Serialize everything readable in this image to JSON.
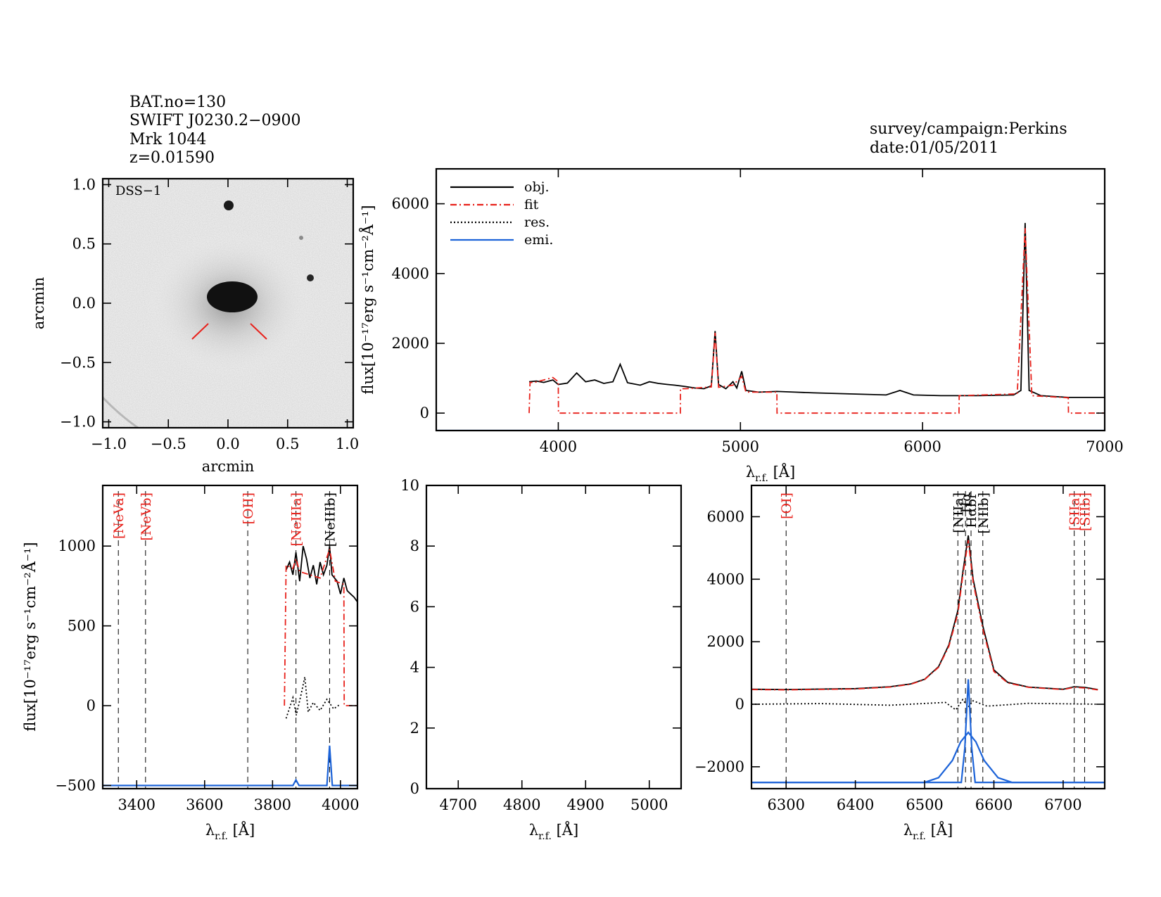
{
  "header": {
    "lines": [
      "BAT.no=130",
      "SWIFT J0230.2−0900",
      "Mrk 1044",
      "z=0.01590"
    ],
    "survey": "survey/campaign:Perkins",
    "date": "date:01/05/2011"
  },
  "colors": {
    "obj": "#000000",
    "fit": "#e8211b",
    "res": "#000000",
    "emi": "#1c63d8"
  },
  "image_panel": {
    "label": "DSS−1",
    "xlabel": "arcmin",
    "ylabel": "arcmin",
    "xticks": [
      "−1.0",
      "−0.5",
      "0.0",
      "0.5",
      "1.0"
    ],
    "yticks": [
      "−1.0",
      "−0.5",
      "0.0",
      "0.5",
      "1.0"
    ]
  },
  "legend": [
    {
      "key": "obj",
      "label": "obj.",
      "style": "solid"
    },
    {
      "key": "fit",
      "label": "fit",
      "style": "dashdot"
    },
    {
      "key": "res",
      "label": "res.",
      "style": "dotted"
    },
    {
      "key": "emi",
      "label": "emi.",
      "style": "solid"
    }
  ],
  "chart_data": [
    {
      "id": "full",
      "type": "line",
      "xlabel": "λr.f. [Å]",
      "xlabel_main": "λ",
      "xlabel_sub": "r.f.",
      "xlabel_rest": " [Å]",
      "ylabel": "flux[10⁻¹⁷erg s⁻¹cm⁻²Å⁻¹]",
      "xlim": [
        3330,
        7000
      ],
      "ylim": [
        -500,
        7000
      ],
      "xticks": [
        4000,
        5000,
        6000,
        7000
      ],
      "yticks": [
        0,
        2000,
        4000,
        6000
      ],
      "series": [
        {
          "name": "obj.",
          "key": "obj",
          "x": [
            3840,
            3880,
            3920,
            3970,
            4000,
            4050,
            4101,
            4150,
            4200,
            4250,
            4300,
            4340,
            4380,
            4450,
            4500,
            4550,
            4600,
            4640,
            4700,
            4750,
            4800,
            4840,
            4861,
            4880,
            4920,
            4959,
            4980,
            5007,
            5030,
            5100,
            5200,
            5300,
            5400,
            5600,
            5800,
            5876,
            5950,
            6100,
            6300,
            6500,
            6540,
            6563,
            6585,
            6650,
            6800,
            7000
          ],
          "y": [
            900,
            920,
            880,
            950,
            820,
            860,
            1150,
            900,
            950,
            850,
            900,
            1400,
            870,
            800,
            900,
            850,
            820,
            800,
            760,
            720,
            700,
            780,
            2350,
            820,
            700,
            900,
            720,
            1200,
            650,
            600,
            620,
            600,
            580,
            550,
            520,
            650,
            520,
            500,
            500,
            520,
            650,
            5450,
            650,
            500,
            450,
            450
          ]
        },
        {
          "name": "fit",
          "key": "fit",
          "x": [
            3840,
            3845,
            3870,
            3970,
            4000,
            4001,
            4670,
            4671,
            4700,
            4840,
            4861,
            4880,
            4959,
            5007,
            5030,
            5200,
            5201,
            6200,
            6201,
            6520,
            6563,
            6600,
            6800,
            6801,
            7000
          ],
          "y": [
            0,
            880,
            880,
            1020,
            900,
            0,
            0,
            700,
            700,
            750,
            2300,
            740,
            800,
            1050,
            600,
            600,
            0,
            0,
            500,
            550,
            5300,
            500,
            440,
            0,
            0
          ]
        },
        {
          "name": "emi.",
          "key": "emi",
          "x": [
            3330,
            7000
          ],
          "y": [
            -500,
            -500
          ]
        }
      ]
    },
    {
      "id": "blue",
      "type": "line",
      "xlabel": "λr.f. [Å]",
      "ylabel": "flux[10⁻¹⁷erg s⁻¹cm⁻²Å⁻¹]",
      "xlim": [
        3300,
        4050
      ],
      "ylim": [
        -520,
        1380
      ],
      "xticks": [
        3400,
        3600,
        3800,
        4000
      ],
      "yticks": [
        -500,
        0,
        500,
        1000
      ],
      "lines": [
        {
          "label": "[NeVa]",
          "x": 3346,
          "color": "fit"
        },
        {
          "label": "[NeVb]",
          "x": 3426,
          "color": "fit"
        },
        {
          "label": "[OII]",
          "x": 3727,
          "color": "fit"
        },
        {
          "label": "[NeIIIa]",
          "x": 3869,
          "color": "fit"
        },
        {
          "label": "[NeIIIb]",
          "x": 3968,
          "color": "obj"
        }
      ],
      "series": [
        {
          "name": "obj.",
          "key": "obj",
          "x": [
            3840,
            3850,
            3860,
            3869,
            3880,
            3890,
            3900,
            3910,
            3920,
            3930,
            3940,
            3950,
            3960,
            3968,
            3975,
            3990,
            4000,
            4010,
            4020,
            4030,
            4040,
            4050
          ],
          "y": [
            850,
            900,
            820,
            960,
            780,
            1000,
            920,
            800,
            880,
            760,
            900,
            820,
            880,
            1000,
            820,
            780,
            700,
            800,
            720,
            700,
            680,
            650
          ]
        },
        {
          "name": "fit",
          "key": "fit",
          "x": [
            3835,
            3840,
            3860,
            3869,
            3880,
            3940,
            3968,
            3985,
            4010,
            4011,
            4050
          ],
          "y": [
            0,
            880,
            860,
            920,
            840,
            800,
            980,
            780,
            760,
            0,
            0
          ]
        },
        {
          "name": "res.",
          "key": "res",
          "x": [
            3840,
            3860,
            3870,
            3885,
            3895,
            3905,
            3920,
            3940,
            3960,
            3980,
            4000
          ],
          "y": [
            -80,
            50,
            -60,
            80,
            180,
            -40,
            20,
            -30,
            40,
            -20,
            10
          ]
        },
        {
          "name": "emi.",
          "key": "emi",
          "x": [
            3300,
            3860,
            3869,
            3878,
            3960,
            3968,
            3976,
            4050
          ],
          "y": [
            -500,
            -500,
            -465,
            -500,
            -500,
            -250,
            -500,
            -500
          ]
        }
      ]
    },
    {
      "id": "mid",
      "type": "line",
      "xlabel": "λr.f. [Å]",
      "xlim": [
        4650,
        5050
      ],
      "ylim": [
        0,
        10
      ],
      "xticks": [
        4700,
        4800,
        4900,
        5000
      ],
      "yticks": [
        0,
        2,
        4,
        6,
        8,
        10
      ],
      "series": []
    },
    {
      "id": "red",
      "type": "line",
      "xlabel": "λr.f. [Å]",
      "xlim": [
        6250,
        6760
      ],
      "ylim": [
        -2700,
        7000
      ],
      "xticks": [
        6300,
        6400,
        6500,
        6600,
        6700
      ],
      "yticks": [
        -2000,
        0,
        2000,
        4000,
        6000
      ],
      "lines": [
        {
          "label": "[OI]",
          "x": 6300,
          "color": "fit"
        },
        {
          "label": "[NIIa]",
          "x": 6548,
          "color": "obj"
        },
        {
          "label": "Hα",
          "x": 6559,
          "color": "obj"
        },
        {
          "label": "Hαbr",
          "x": 6567,
          "color": "obj"
        },
        {
          "label": "[NIIb]",
          "x": 6584,
          "color": "obj"
        },
        {
          "label": "[SIIa]",
          "x": 6716,
          "color": "fit"
        },
        {
          "label": "[SIIb]",
          "x": 6731,
          "color": "fit"
        }
      ],
      "series": [
        {
          "name": "obj.",
          "key": "obj",
          "x": [
            6250,
            6300,
            6400,
            6450,
            6480,
            6500,
            6520,
            6535,
            6548,
            6555,
            6563,
            6570,
            6584,
            6600,
            6620,
            6650,
            6700,
            6716,
            6731,
            6750
          ],
          "y": [
            480,
            470,
            500,
            560,
            650,
            800,
            1200,
            1900,
            3000,
            4200,
            5400,
            4000,
            2500,
            1100,
            700,
            550,
            480,
            560,
            540,
            470
          ]
        },
        {
          "name": "fit",
          "key": "fit",
          "x": [
            6250,
            6300,
            6400,
            6450,
            6480,
            6500,
            6520,
            6535,
            6548,
            6555,
            6563,
            6570,
            6584,
            6600,
            6620,
            6650,
            6700,
            6716,
            6731,
            6750
          ],
          "y": [
            470,
            460,
            490,
            550,
            640,
            790,
            1180,
            1850,
            2900,
            4100,
            5250,
            3900,
            2400,
            1050,
            680,
            540,
            470,
            540,
            520,
            460
          ]
        },
        {
          "name": "res.",
          "key": "res",
          "x": [
            6250,
            6350,
            6450,
            6530,
            6545,
            6555,
            6563,
            6570,
            6590,
            6650,
            6750
          ],
          "y": [
            0,
            20,
            -30,
            60,
            -180,
            150,
            -90,
            110,
            -60,
            30,
            0
          ]
        },
        {
          "name": "emi. narrow",
          "key": "emi",
          "x": [
            6250,
            6553,
            6558,
            6563,
            6568,
            6573,
            6760
          ],
          "y": [
            -2500,
            -2500,
            -1400,
            800,
            -1400,
            -2500,
            -2500
          ]
        },
        {
          "name": "emi. broad",
          "key": "emi",
          "x": [
            6250,
            6500,
            6520,
            6540,
            6552,
            6563,
            6574,
            6586,
            6606,
            6626,
            6760
          ],
          "y": [
            -2500,
            -2500,
            -2350,
            -1800,
            -1200,
            -900,
            -1200,
            -1800,
            -2350,
            -2500,
            -2500
          ]
        }
      ]
    }
  ]
}
